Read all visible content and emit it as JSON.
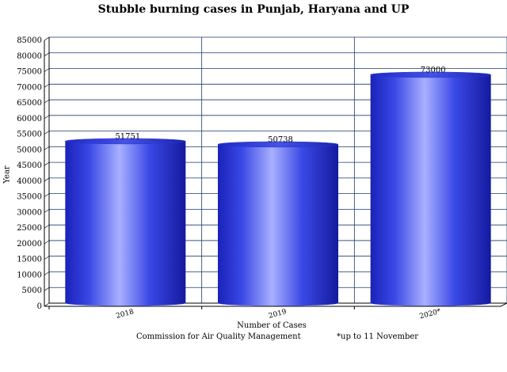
{
  "chart_data": {
    "type": "bar",
    "title": "Stubble burning cases in Punjab, Haryana and UP",
    "xlabel": "Number of Cases",
    "ylabel": "Year",
    "categories": [
      "2018",
      "2019",
      "2020*"
    ],
    "values": [
      51751,
      50738,
      73000
    ],
    "value_labels": [
      "51751",
      "50738",
      "73000"
    ],
    "ylim": [
      0,
      85000
    ],
    "yticks": [
      0,
      5000,
      10000,
      15000,
      20000,
      25000,
      30000,
      35000,
      40000,
      45000,
      50000,
      55000,
      60000,
      65000,
      70000,
      75000,
      80000,
      85000
    ],
    "grid": true,
    "bar_color": "#2433d8"
  },
  "footer": {
    "source": "Commission for Air Quality Management",
    "note": "*up to 11 November"
  }
}
